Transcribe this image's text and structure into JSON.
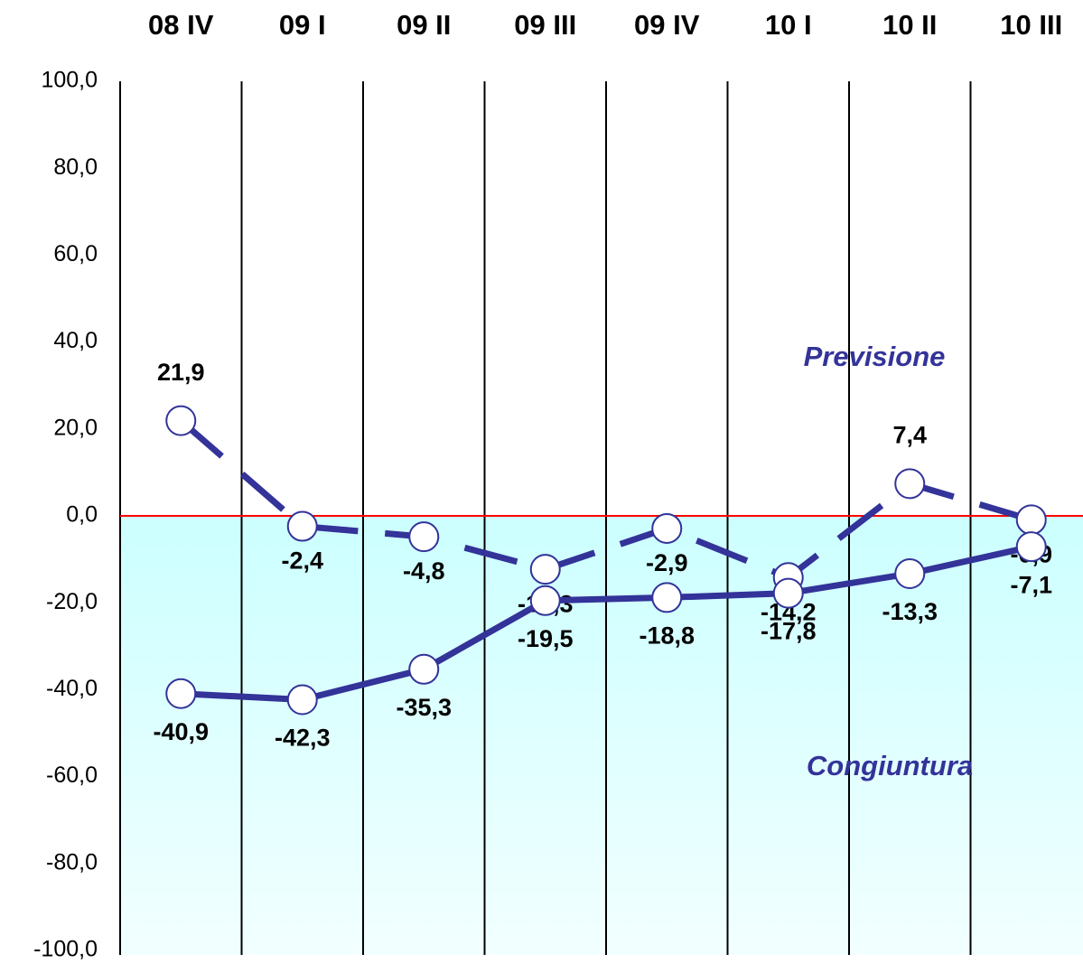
{
  "chart_data": {
    "type": "line",
    "categories": [
      "08 IV",
      "09 I",
      "09 II",
      "09 III",
      "09 IV",
      "10 I",
      "10 II",
      "10 III"
    ],
    "series": [
      {
        "name": "Previsione",
        "color": "#333399",
        "line_style": "dashed",
        "values": [
          21.9,
          -2.4,
          -4.8,
          -12.3,
          -2.9,
          -14.2,
          7.4,
          -0.9
        ],
        "value_labels": [
          "21,9",
          "-2,4",
          "-4,8",
          "-12,3",
          "-2,9",
          "-14,2",
          "7,4",
          "-0,9"
        ]
      },
      {
        "name": "Congiuntura",
        "color": "#333399",
        "line_style": "solid",
        "values": [
          -40.9,
          -42.3,
          -35.3,
          -19.5,
          -18.8,
          -17.8,
          -13.3,
          -7.1
        ],
        "value_labels": [
          "-40,9",
          "-42,3",
          "-35,3",
          "-19,5",
          "-18,8",
          "-17,8",
          "-13,3",
          "-7,1"
        ]
      }
    ],
    "ylim": [
      -100,
      100
    ],
    "yticks": [
      {
        "value": -100,
        "label": "-100,0"
      },
      {
        "value": -80,
        "label": "-80,0"
      },
      {
        "value": -60,
        "label": "-60,0"
      },
      {
        "value": -40,
        "label": "-40,0"
      },
      {
        "value": -20,
        "label": "-20,0"
      },
      {
        "value": 0,
        "label": "0,0"
      },
      {
        "value": 20,
        "label": "20,0"
      },
      {
        "value": 40,
        "label": "40,0"
      },
      {
        "value": 60,
        "label": "60,0"
      },
      {
        "value": 80,
        "label": "80,0"
      },
      {
        "value": 100,
        "label": "100,0"
      }
    ],
    "reference_line": {
      "value": 0,
      "color": "#ff0000"
    }
  }
}
